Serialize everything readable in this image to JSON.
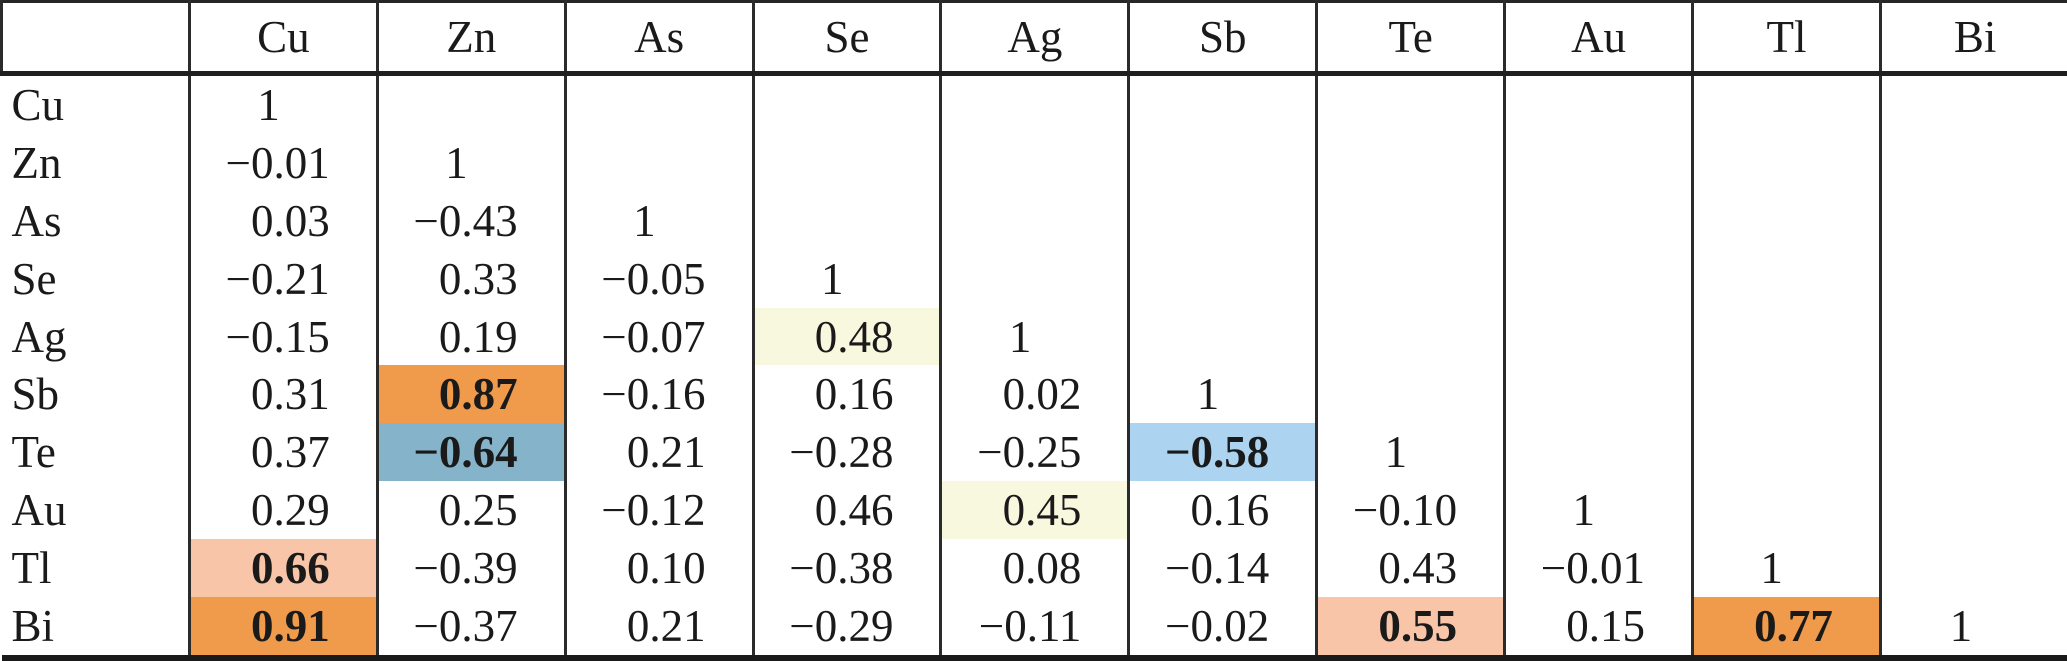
{
  "table": {
    "corner_label": "",
    "columns": [
      "Cu",
      "Zn",
      "As",
      "Se",
      "Ag",
      "Sb",
      "Te",
      "Au",
      "Tl",
      "Bi"
    ],
    "rows": [
      {
        "label": "Cu",
        "values": [
          "1",
          "",
          "",
          "",
          "",
          "",
          "",
          "",
          "",
          ""
        ]
      },
      {
        "label": "Zn",
        "values": [
          "−0.01",
          "1",
          "",
          "",
          "",
          "",
          "",
          "",
          "",
          ""
        ]
      },
      {
        "label": "As",
        "values": [
          "0.03",
          "−0.43",
          "1",
          "",
          "",
          "",
          "",
          "",
          "",
          ""
        ]
      },
      {
        "label": "Se",
        "values": [
          "−0.21",
          "0.33",
          "−0.05",
          "1",
          "",
          "",
          "",
          "",
          "",
          ""
        ]
      },
      {
        "label": "Ag",
        "values": [
          "−0.15",
          "0.19",
          "−0.07",
          "0.48",
          "1",
          "",
          "",
          "",
          "",
          ""
        ]
      },
      {
        "label": "Sb",
        "values": [
          "0.31",
          "0.87",
          "−0.16",
          "0.16",
          "0.02",
          "1",
          "",
          "",
          "",
          ""
        ]
      },
      {
        "label": "Te",
        "values": [
          "0.37",
          "−0.64",
          "0.21",
          "−0.28",
          "−0.25",
          "−0.58",
          "1",
          "",
          "",
          ""
        ]
      },
      {
        "label": "Au",
        "values": [
          "0.29",
          "0.25",
          "−0.12",
          "0.46",
          "0.45",
          "0.16",
          "−0.10",
          "1",
          "",
          ""
        ]
      },
      {
        "label": "Tl",
        "values": [
          "0.66",
          "−0.39",
          "0.10",
          "−0.38",
          "0.08",
          "−0.14",
          "0.43",
          "−0.01",
          "1",
          ""
        ]
      },
      {
        "label": "Bi",
        "values": [
          "0.91",
          "−0.37",
          "0.21",
          "−0.29",
          "−0.11",
          "−0.02",
          "0.55",
          "0.15",
          "0.77",
          "1"
        ]
      }
    ],
    "highlights": [
      {
        "row": "Ag",
        "col": "Se",
        "color": "pale_yellow",
        "bold": false
      },
      {
        "row": "Sb",
        "col": "Zn",
        "color": "orange",
        "bold": true
      },
      {
        "row": "Te",
        "col": "Zn",
        "color": "steel_blue",
        "bold": true
      },
      {
        "row": "Te",
        "col": "Sb",
        "color": "light_blue",
        "bold": true
      },
      {
        "row": "Au",
        "col": "Ag",
        "color": "pale_yellow",
        "bold": false
      },
      {
        "row": "Tl",
        "col": "Cu",
        "color": "salmon",
        "bold": true
      },
      {
        "row": "Bi",
        "col": "Cu",
        "color": "orange",
        "bold": true
      },
      {
        "row": "Bi",
        "col": "Te",
        "color": "salmon",
        "bold": true
      },
      {
        "row": "Bi",
        "col": "Tl",
        "color": "orange",
        "bold": true
      }
    ]
  },
  "colors": {
    "orange": "#F09A4B",
    "salmon": "#F9C5A9",
    "pale_yellow": "#F8F8DF",
    "steel_blue": "#85B3CA",
    "light_blue": "#ACD3F0",
    "rule": "#262626",
    "text": "#1A1A1A",
    "background": "#FFFFFF"
  }
}
